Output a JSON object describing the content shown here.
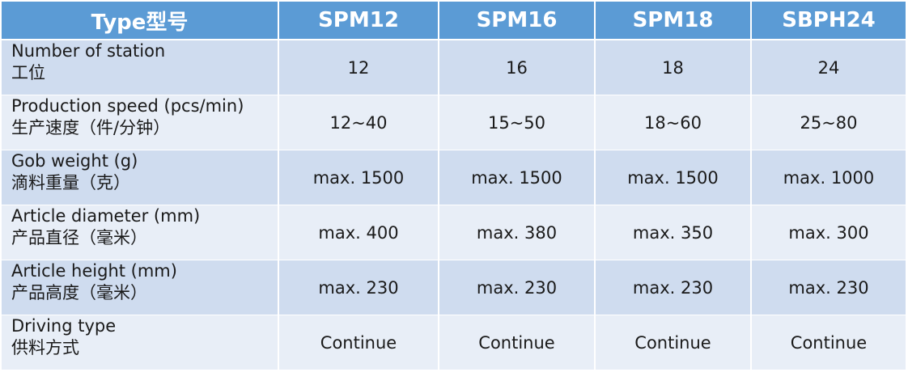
{
  "table": {
    "header": [
      "Type型号",
      "SPM12",
      "SPM16",
      "SPM18",
      "SBPH24"
    ],
    "rows": [
      {
        "label": [
          "Number of station",
          "工位"
        ],
        "values": [
          "12",
          "16",
          "18",
          "24"
        ]
      },
      {
        "label": [
          "Production speed (pcs/min)",
          "生产速度（件/分钟）"
        ],
        "values": [
          "12~40",
          "15~50",
          "18~60",
          "25~80"
        ]
      },
      {
        "label": [
          "Gob weight (g)",
          "滴料重量（克）"
        ],
        "values": [
          "max. 1500",
          "max. 1500",
          "max. 1500",
          "max. 1000"
        ]
      },
      {
        "label": [
          "Article diameter (mm)",
          "产品直径（毫米）"
        ],
        "values": [
          "max. 400",
          "max. 380",
          "max. 350",
          "max. 300"
        ]
      },
      {
        "label": [
          "Article height (mm)",
          "产品高度（毫米）"
        ],
        "values": [
          "max. 230",
          "max. 230",
          "max. 230",
          "max. 230"
        ]
      },
      {
        "label": [
          "Driving type",
          "供料方式"
        ],
        "values": [
          "Continue",
          "Continue",
          "Continue",
          "Continue"
        ]
      }
    ]
  }
}
